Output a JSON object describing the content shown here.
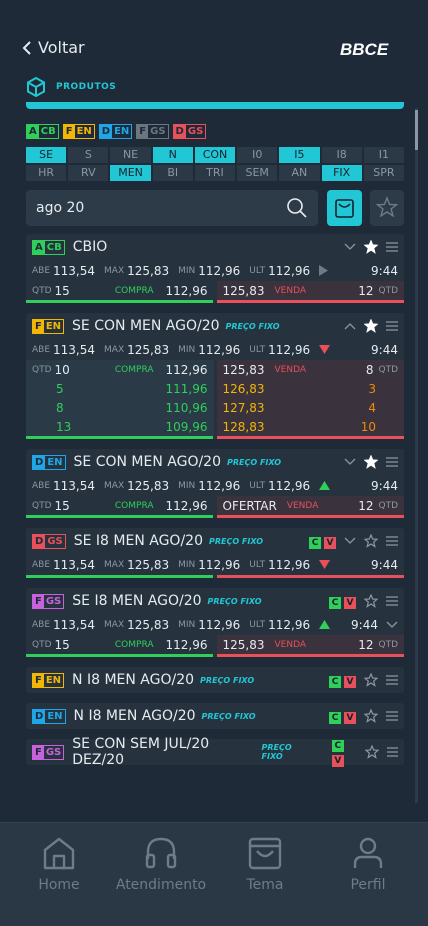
{
  "header": {
    "back": "Voltar",
    "logo": "BBCE"
  },
  "section": "PRODUTOS",
  "filters": [
    {
      "letter": "A",
      "code": "CB",
      "color": "#2fcf5a",
      "active": true
    },
    {
      "letter": "F",
      "code": "EN",
      "color": "#f2b705",
      "active": true
    },
    {
      "letter": "D",
      "code": "EN",
      "color": "#1ea7e8",
      "active": true
    },
    {
      "letter": "F",
      "code": "GS",
      "color": "#6b7680",
      "active": false
    },
    {
      "letter": "D",
      "code": "GS",
      "color": "#e8505b",
      "active": true
    }
  ],
  "segments": [
    [
      {
        "label": "SE",
        "active": true
      },
      {
        "label": "S",
        "active": false
      },
      {
        "label": "NE",
        "active": false
      },
      {
        "label": "N",
        "active": true
      },
      {
        "label": "CON",
        "active": true
      },
      {
        "label": "I0",
        "active": false
      },
      {
        "label": "I5",
        "active": true
      },
      {
        "label": "I8",
        "active": false
      },
      {
        "label": "I1",
        "active": false
      }
    ],
    [
      {
        "label": "HR",
        "active": false
      },
      {
        "label": "RV",
        "active": false
      },
      {
        "label": "MEN",
        "active": true
      },
      {
        "label": "BI",
        "active": false
      },
      {
        "label": "TRI",
        "active": false
      },
      {
        "label": "SEM",
        "active": false
      },
      {
        "label": "AN",
        "active": false
      },
      {
        "label": "FIX",
        "active": true
      },
      {
        "label": "SPR",
        "active": false
      }
    ]
  ],
  "search": {
    "query": "ago 20"
  },
  "labels": {
    "abe": "ABE",
    "max": "MAX",
    "min": "MIN",
    "ult": "ULT",
    "qtd": "QTD",
    "compra": "COMPRA",
    "venda": "VENDA",
    "fixed": "PREÇO FIXO",
    "c": "C",
    "v": "V"
  },
  "cards": [
    {
      "badge": {
        "letter": "A",
        "code": "CB",
        "color": "#2fcf5a"
      },
      "name": "CBIO",
      "fixed": false,
      "cv": false,
      "expanded": false,
      "starred": true,
      "stats": {
        "abe": "113,54",
        "max": "125,83",
        "min": "112,96",
        "ult": "112,96",
        "trend": "flat",
        "time": "9:44"
      },
      "book": [
        {
          "qty": "15",
          "bid": "112,96",
          "ask": "125,83",
          "ask_qty": "12"
        }
      ]
    },
    {
      "badge": {
        "letter": "F",
        "code": "EN",
        "color": "#f2b705"
      },
      "name": "SE CON MEN AGO/20",
      "fixed": true,
      "cv": false,
      "expanded": true,
      "starred": true,
      "stats": {
        "abe": "113,54",
        "max": "125,83",
        "min": "112,96",
        "ult": "112,96",
        "trend": "down",
        "time": "9:44"
      },
      "book": [
        {
          "qty": "10",
          "bid": "112,96",
          "ask": "125,83",
          "ask_qty": "8"
        },
        {
          "qty": "5",
          "bid": "111,96",
          "ask": "126,83",
          "ask_qty": "3"
        },
        {
          "qty": "8",
          "bid": "110,96",
          "ask": "127,83",
          "ask_qty": "4"
        },
        {
          "qty": "13",
          "bid": "109,96",
          "ask": "128,83",
          "ask_qty": "10"
        }
      ]
    },
    {
      "badge": {
        "letter": "D",
        "code": "EN",
        "color": "#1ea7e8"
      },
      "name": "SE CON MEN AGO/20",
      "fixed": true,
      "cv": false,
      "expanded": false,
      "starred": true,
      "stats": {
        "abe": "113,54",
        "max": "125,83",
        "min": "112,96",
        "ult": "112,96",
        "trend": "up",
        "time": "9:44"
      },
      "book": [
        {
          "qty": "15",
          "bid": "112,96",
          "ask": "OFERTAR",
          "ask_qty": "12"
        }
      ]
    },
    {
      "badge": {
        "letter": "D",
        "code": "GS",
        "color": "#e8505b"
      },
      "name": "SE I8 MEN AGO/20",
      "fixed": true,
      "cv": true,
      "expanded": false,
      "starred": false,
      "stats": {
        "abe": "113,54",
        "max": "125,83",
        "min": "112,96",
        "ult": "112,96",
        "trend": "down",
        "time": "9:44"
      }
    },
    {
      "badge": {
        "letter": "F",
        "code": "GS",
        "color": "#c862dc"
      },
      "name": "SE I8 MEN AGO/20",
      "fixed": true,
      "cv": true,
      "expanded": false,
      "starred": false,
      "stats": {
        "abe": "113,54",
        "max": "125,83",
        "min": "112,96",
        "ult": "112,96",
        "trend": "up",
        "time": "9:44"
      },
      "book": [
        {
          "qty": "15",
          "bid": "112,96",
          "ask": "125,83",
          "ask_qty": "12"
        }
      ]
    },
    {
      "badge": {
        "letter": "F",
        "code": "EN",
        "color": "#f2b705"
      },
      "name": "N I8 MEN AGO/20",
      "fixed": true,
      "cv": true,
      "expanded": false,
      "starred": false
    },
    {
      "badge": {
        "letter": "D",
        "code": "EN",
        "color": "#1ea7e8"
      },
      "name": "N I8 MEN AGO/20",
      "fixed": true,
      "cv": true,
      "expanded": false,
      "starred": false
    },
    {
      "badge": {
        "letter": "F",
        "code": "GS",
        "color": "#c862dc"
      },
      "name": "SE CON SEM JUL/20 DEZ/20",
      "fixed": true,
      "cv": true,
      "expanded": false,
      "starred": false
    }
  ],
  "nav": [
    "Home",
    "Atendimento",
    "Tema",
    "Perfil"
  ]
}
